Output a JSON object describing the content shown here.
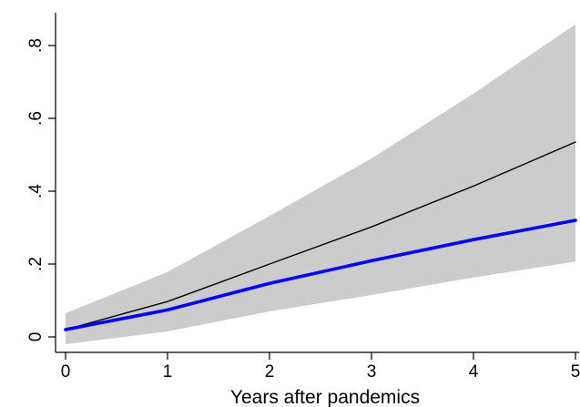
{
  "chart_data": {
    "type": "line",
    "xlabel": "Years after pandemics",
    "ylabel": "",
    "xlim": [
      0,
      5
    ],
    "ylim": [
      0,
      0.8
    ],
    "x_ticks": [
      {
        "value": 0,
        "label": "0"
      },
      {
        "value": 1,
        "label": "1"
      },
      {
        "value": 2,
        "label": "2"
      },
      {
        "value": 3,
        "label": "3"
      },
      {
        "value": 4,
        "label": "4"
      },
      {
        "value": 5,
        "label": "5"
      }
    ],
    "y_ticks": [
      {
        "value": 0,
        "label": "0"
      },
      {
        "value": 0.2,
        "label": ".2"
      },
      {
        "value": 0.4,
        "label": ".4"
      },
      {
        "value": 0.6,
        "label": ".6"
      },
      {
        "value": 0.8,
        "label": ".8"
      }
    ],
    "x": [
      0,
      1,
      2,
      3,
      4,
      5
    ],
    "series": [
      {
        "values": [
          0.02,
          0.097,
          0.2,
          0.302,
          0.414,
          0.535
        ],
        "color": "#000000"
      },
      {
        "values": [
          0.02,
          0.074,
          0.147,
          0.209,
          0.267,
          0.32
        ],
        "color": "#0000ff"
      }
    ],
    "band": {
      "lower": [
        -0.02,
        0.015,
        0.07,
        0.115,
        0.163,
        0.207
      ],
      "upper": [
        0.065,
        0.178,
        0.332,
        0.49,
        0.668,
        0.858
      ],
      "color": "#cccccc"
    },
    "grid": false,
    "legend": "none"
  }
}
